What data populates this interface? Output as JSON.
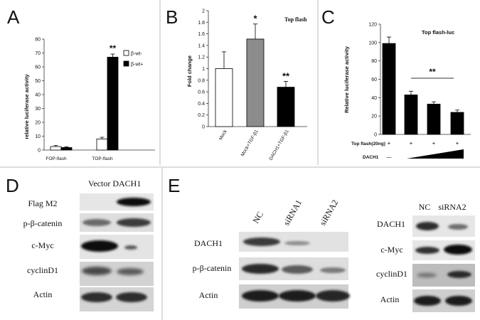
{
  "panel_letters": [
    "A",
    "B",
    "C",
    "D",
    "E"
  ],
  "chart_data": [
    {
      "panel": "A",
      "type": "bar",
      "categories": [
        "FOP-flash",
        "TOP-flash"
      ],
      "ylabel": "relative luciferase activity",
      "yticks": [
        "0",
        "10",
        "20",
        "30",
        "40",
        "50",
        "60",
        "70",
        "80"
      ],
      "ylim": [
        0,
        80
      ],
      "series": [
        {
          "name": "β-wt-",
          "values": [
            2.5,
            8
          ],
          "errors": [
            0.8,
            1.2
          ],
          "color": "#ffffff"
        },
        {
          "name": "β-wt+",
          "values": [
            1.8,
            67
          ],
          "errors": [
            0.6,
            2.2
          ],
          "color": "#000000"
        }
      ],
      "annotations": [
        {
          "text": "**",
          "category": 1,
          "series": 1
        }
      ],
      "legend": "top-right"
    },
    {
      "panel": "B",
      "type": "bar",
      "title": "Top flash",
      "categories": [
        "Mock",
        "Mock+TGF-β1",
        "DACH1+TGF-β1"
      ],
      "ylabel": "Fold change",
      "yticks": [
        "0",
        "0.2",
        "0.4",
        "0.6",
        "0.8",
        "1",
        "1.2",
        "1.4",
        "1.6",
        "1.8",
        "2"
      ],
      "ylim": [
        0,
        2
      ],
      "values": [
        1.0,
        1.51,
        0.68
      ],
      "errors": [
        0.29,
        0.26,
        0.1
      ],
      "colors": [
        "#ffffff",
        "#8c8c8c",
        "#000000"
      ],
      "annotations": [
        "",
        "*",
        "**"
      ]
    },
    {
      "panel": "C",
      "type": "bar",
      "title": "Top flash-luc",
      "ylabel": "Relative luciferase activity",
      "yticks": [
        "0",
        "20",
        "40",
        "60",
        "80",
        "100",
        "120"
      ],
      "ylim": [
        0,
        120
      ],
      "values": [
        99,
        43,
        33,
        24
      ],
      "errors": [
        7,
        4,
        2.5,
        2.5
      ],
      "significance": "**",
      "row1_label": "Top flash(20ng)",
      "row1_marks": [
        "+",
        "+",
        "+",
        "+"
      ],
      "row2_label": "DACH1",
      "row2_first": "—"
    }
  ],
  "blots": {
    "D": {
      "header": "Vector DACH1",
      "rows": [
        "Flag M2",
        "p-β-catenin",
        "c-Myc",
        "cyclinD1",
        "Actin"
      ]
    },
    "E1": {
      "lanes": [
        "NC",
        "siRNA1",
        "siRNA2"
      ],
      "rows": [
        "DACH1",
        "p-β-catenin",
        "Actin"
      ]
    },
    "E2": {
      "lanes": [
        "NC",
        "siRNA2"
      ],
      "rows": [
        "DACH1",
        "c-Myc",
        "cyclinD1",
        "Actin"
      ]
    }
  }
}
